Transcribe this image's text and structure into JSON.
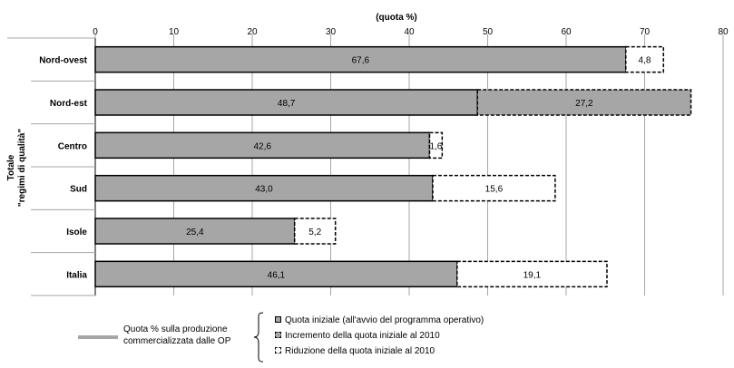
{
  "chart_data": {
    "type": "bar",
    "orientation": "horizontal",
    "stacked": true,
    "title": "(quota %)",
    "ylabel": "Totale \"regimi di qualità\"",
    "xlim": [
      0,
      80
    ],
    "xticks": [
      0,
      10,
      20,
      30,
      40,
      50,
      60,
      70,
      80
    ],
    "grid": true,
    "categories": [
      "Nord-ovest",
      "Nord-est",
      "Centro",
      "Sud",
      "Isole",
      "Italia"
    ],
    "series": [
      {
        "key": "iniziale",
        "values": [
          67.6,
          48.7,
          42.6,
          43.0,
          25.4,
          46.1
        ],
        "labels": [
          "67,6",
          "48,7",
          "42,6",
          "43,0",
          "25,4",
          "46,1"
        ],
        "color": "#a6a6a6",
        "border": "solid"
      },
      {
        "key": "variazione",
        "kinds": [
          "riduzione",
          "incremento",
          "riduzione",
          "riduzione",
          "riduzione",
          "riduzione"
        ],
        "values": [
          4.8,
          27.2,
          1.6,
          15.6,
          5.2,
          19.1
        ],
        "labels": [
          "4,8",
          "27,2",
          "1,6",
          "15,6",
          "5,2",
          "19,1"
        ]
      }
    ],
    "colors": {
      "fill": "#a6a6a6",
      "grid": "#a6a6a6",
      "border": "#000000"
    }
  },
  "legend": {
    "caption": "Quota % sulla produzione commercializzata dalle OP",
    "items": [
      {
        "label": "Quota iniziale (all'avvio del programma operativo)",
        "style": "solid"
      },
      {
        "label": "Incremento della quota iniziale al 2010",
        "style": "incremento"
      },
      {
        "label": "Riduzione della quota iniziale al 2010",
        "style": "riduzione"
      }
    ]
  }
}
